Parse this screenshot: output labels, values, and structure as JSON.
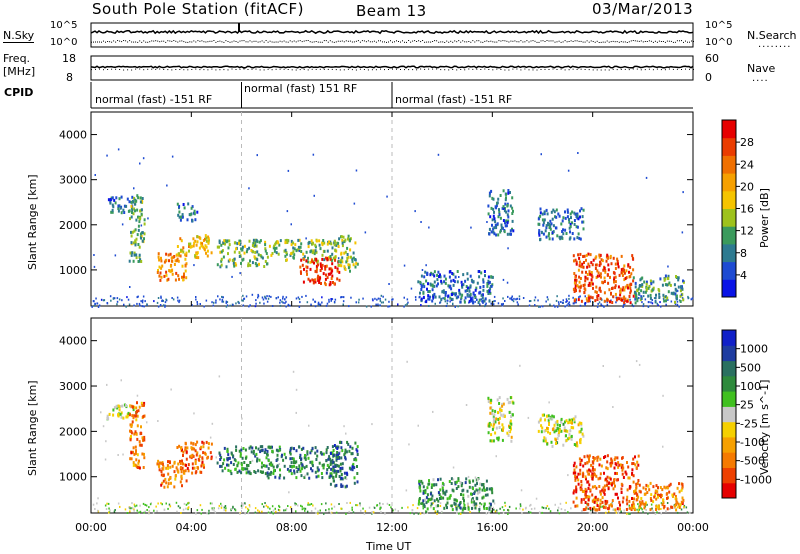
{
  "header": {
    "station": "South Pole Station (fitACF)",
    "beam": "Beam 13",
    "date": "03/Mar/2013"
  },
  "nsky_panel": {
    "left_label": "N.Sky",
    "right_label": "N.Search",
    "left_ticks": [
      "10^5",
      "10^0"
    ],
    "right_ticks": [
      "10^5",
      "10^0"
    ]
  },
  "freq_panel": {
    "left_label_1": "Freq.",
    "left_label_2": "[MHz]",
    "right_label": "Nave",
    "left_ticks": [
      "18",
      "8"
    ],
    "right_ticks": [
      "60",
      "0"
    ]
  },
  "cpid_panel": {
    "label": "CPID",
    "segments": [
      {
        "text": "normal (fast) -151 RF",
        "start": 0,
        "end": 6
      },
      {
        "text": "normal (fast) 151 RF",
        "start": 6,
        "end": 12
      },
      {
        "text": "normal (fast) -151 RF",
        "start": 12,
        "end": 24
      }
    ]
  },
  "chart_data": [
    {
      "type": "heatmap",
      "name": "power",
      "ylabel": "Slant Range [km]",
      "xlim": [
        0,
        24
      ],
      "ylim": [
        200,
        4500
      ],
      "y_ticks": [
        1000,
        2000,
        3000,
        4000
      ],
      "colorbar": {
        "label": "Power [dB]",
        "ticks": [
          "4",
          "8",
          "12",
          "16",
          "20",
          "24",
          "28"
        ],
        "colors": [
          "#0a14e6",
          "#1e4bd2",
          "#2d7a90",
          "#3a9a5c",
          "#9ec21c",
          "#f5c400",
          "#f6a000",
          "#f07000",
          "#ea3c00",
          "#e60000"
        ]
      },
      "patches": [
        {
          "t0": 0.6,
          "t1": 1.8,
          "r0": 2300,
          "r1": 2650,
          "v": 0.2
        },
        {
          "t0": 1.5,
          "t1": 2.1,
          "r0": 1200,
          "r1": 2700,
          "v": 0.35
        },
        {
          "t0": 2.6,
          "t1": 3.8,
          "r0": 800,
          "r1": 1400,
          "v": 0.75
        },
        {
          "t0": 3.4,
          "t1": 4.8,
          "r0": 1300,
          "r1": 1800,
          "v": 0.6
        },
        {
          "t0": 3.4,
          "t1": 4.2,
          "r0": 2100,
          "r1": 2500,
          "v": 0.2
        },
        {
          "t0": 5.0,
          "t1": 7.0,
          "r0": 1100,
          "r1": 1700,
          "v": 0.35
        },
        {
          "t0": 7.0,
          "t1": 9.8,
          "r0": 1200,
          "r1": 1700,
          "v": 0.4
        },
        {
          "t0": 8.3,
          "t1": 9.9,
          "r0": 700,
          "r1": 1300,
          "v": 0.95
        },
        {
          "t0": 9.8,
          "t1": 10.6,
          "r0": 1000,
          "r1": 1800,
          "v": 0.4
        },
        {
          "t0": 13.0,
          "t1": 16.0,
          "r0": 300,
          "r1": 1000,
          "v": 0.15
        },
        {
          "t0": 15.8,
          "t1": 16.8,
          "r0": 1800,
          "r1": 2800,
          "v": 0.2
        },
        {
          "t0": 17.8,
          "t1": 19.6,
          "r0": 1700,
          "r1": 2400,
          "v": 0.2
        },
        {
          "t0": 19.2,
          "t1": 21.6,
          "r0": 300,
          "r1": 1400,
          "v": 0.85
        },
        {
          "t0": 21.6,
          "t1": 23.6,
          "r0": 300,
          "r1": 900,
          "v": 0.3
        }
      ]
    },
    {
      "type": "heatmap",
      "name": "velocity",
      "xlabel": "Time UT",
      "ylabel": "Slant Range [km]",
      "xlim": [
        0,
        24
      ],
      "ylim": [
        200,
        4500
      ],
      "x_ticks": [
        "00:00",
        "04:00",
        "08:00",
        "12:00",
        "16:00",
        "20:00",
        "00:00"
      ],
      "y_ticks": [
        1000,
        2000,
        3000,
        4000
      ],
      "colorbar": {
        "label": "Velocity [m s^-1]",
        "ticks": [
          "-1000",
          "-500",
          "-100",
          "-25",
          "25",
          "100",
          "500",
          "1000"
        ],
        "colors": [
          "#e60000",
          "#ee4000",
          "#f57a00",
          "#f6a000",
          "#f5d000",
          "#c8c8c8",
          "#40c020",
          "#2e8a3c",
          "#2a7060",
          "#1e3ca0",
          "#1020c8"
        ]
      },
      "patches": [
        {
          "t0": 0.6,
          "t1": 1.8,
          "r0": 2300,
          "r1": 2650,
          "v": 0.5
        },
        {
          "t0": 1.5,
          "t1": 2.1,
          "r0": 1200,
          "r1": 2700,
          "v": 0.2
        },
        {
          "t0": 2.6,
          "t1": 3.8,
          "r0": 800,
          "r1": 1400,
          "v": 0.2
        },
        {
          "t0": 3.4,
          "t1": 4.8,
          "r0": 1100,
          "r1": 1800,
          "v": 0.15
        },
        {
          "t0": 5.0,
          "t1": 7.0,
          "r0": 1100,
          "r1": 1700,
          "v": 0.75
        },
        {
          "t0": 7.0,
          "t1": 9.8,
          "r0": 1000,
          "r1": 1700,
          "v": 0.75
        },
        {
          "t0": 9.5,
          "t1": 10.6,
          "r0": 800,
          "r1": 1800,
          "v": 0.8
        },
        {
          "t0": 13.0,
          "t1": 16.0,
          "r0": 300,
          "r1": 1000,
          "v": 0.7
        },
        {
          "t0": 15.8,
          "t1": 16.8,
          "r0": 1800,
          "r1": 2800,
          "v": 0.48
        },
        {
          "t0": 17.8,
          "t1": 19.6,
          "r0": 1700,
          "r1": 2400,
          "v": 0.48
        },
        {
          "t0": 19.2,
          "t1": 21.8,
          "r0": 300,
          "r1": 1500,
          "v": 0.12
        },
        {
          "t0": 21.6,
          "t1": 23.6,
          "r0": 300,
          "r1": 900,
          "v": 0.22
        }
      ]
    }
  ]
}
